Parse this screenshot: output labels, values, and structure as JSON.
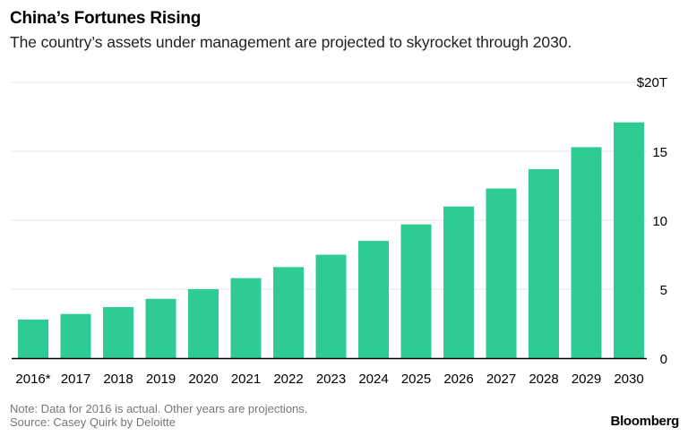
{
  "header": {
    "title": "China’s Fortunes Rising",
    "subtitle": "The country’s assets under management are projected to skyrocket through 2030."
  },
  "footer": {
    "note": "Note: Data for 2016 is actual. Other years are projections.",
    "source": "Source: Casey Quirk by Deloitte",
    "brand": "Bloomberg"
  },
  "colors": {
    "bar": "#2ecc92",
    "grid": "#e6e6e6",
    "axis": "#000000",
    "text": "#000000"
  },
  "chart_data": {
    "type": "bar",
    "title": "China’s Fortunes Rising",
    "xlabel": "",
    "ylabel": "",
    "categories": [
      "2016*",
      "2017",
      "2018",
      "2019",
      "2020",
      "2021",
      "2022",
      "2023",
      "2024",
      "2025",
      "2026",
      "2027",
      "2028",
      "2029",
      "2030"
    ],
    "values": [
      2.8,
      3.2,
      3.7,
      4.3,
      5.0,
      5.8,
      6.6,
      7.5,
      8.5,
      9.7,
      11.0,
      12.3,
      13.7,
      15.3,
      17.1
    ],
    "ylim": [
      0,
      20
    ],
    "yticks": [
      0,
      5,
      10,
      15,
      20
    ],
    "ytick_labels": [
      "0",
      "5",
      "10",
      "15",
      "$20T"
    ],
    "grid": true,
    "y_axis_side": "right"
  }
}
